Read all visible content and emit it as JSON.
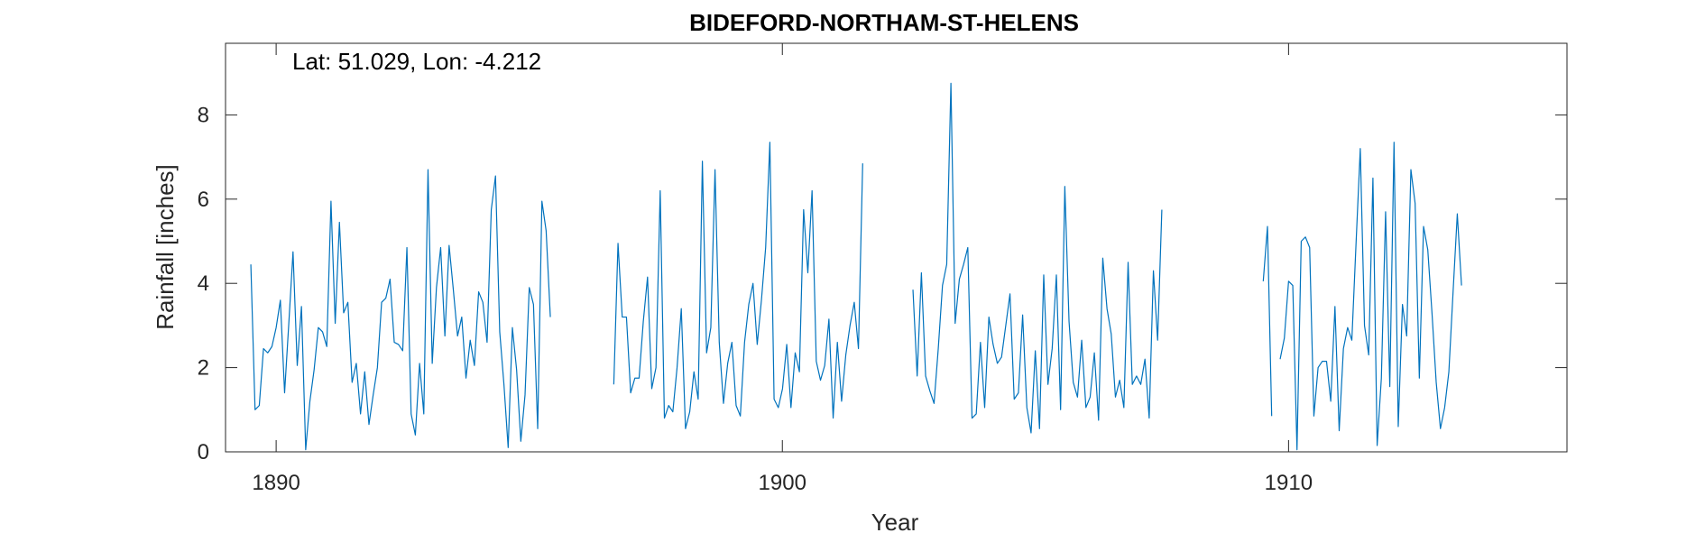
{
  "chart_data": {
    "type": "line",
    "title": "BIDEFORD-NORTHAM-ST-HELENS",
    "annotation": "Lat: 51.029, Lon: -4.212",
    "xlabel": "Year",
    "ylabel": "Rainfall [inches]",
    "xlim": [
      1889.0,
      1915.5
    ],
    "ylim": [
      0,
      9.7
    ],
    "xticks": [
      1890,
      1900,
      1910
    ],
    "yticks": [
      0,
      2,
      4,
      6,
      8
    ],
    "grid": false,
    "line_color": "#0072BD",
    "series": [
      {
        "start_year": 1889.5,
        "values": [
          4.45,
          1.0,
          1.1,
          2.45,
          2.35,
          2.5,
          2.95,
          3.6,
          1.4,
          3.05,
          4.75,
          2.05,
          3.45,
          0.05,
          1.2,
          1.95,
          2.95,
          2.85,
          2.5,
          5.95,
          3.05,
          5.45,
          3.3,
          3.55,
          1.65,
          2.1,
          0.9,
          1.9,
          0.65,
          1.35,
          2.0,
          3.55,
          3.65,
          4.1,
          2.6,
          2.55,
          2.4,
          4.85,
          0.9,
          0.4,
          2.1,
          0.9,
          6.7,
          2.1,
          3.9,
          4.85,
          2.75,
          4.9,
          3.85,
          2.75,
          3.2,
          1.75,
          2.65,
          2.05,
          3.8,
          3.55,
          2.6,
          5.75,
          6.55,
          2.85,
          1.6,
          0.1,
          2.95,
          1.95,
          0.25,
          1.35,
          3.9,
          3.5,
          0.55,
          5.95,
          5.25,
          3.2
        ]
      },
      {
        "start_year": 1896.67,
        "values": [
          1.6,
          4.95,
          3.2,
          3.2,
          1.4,
          1.75,
          1.75,
          3.1,
          4.15,
          1.5,
          2.0,
          6.2,
          0.8,
          1.1,
          0.95,
          2.0,
          3.4,
          0.55,
          0.95,
          1.9,
          1.25,
          6.9,
          2.35,
          2.95,
          6.7,
          2.6,
          1.15,
          2.1,
          2.6,
          1.1,
          0.85,
          2.6,
          3.5,
          4.0,
          2.55,
          3.6,
          4.85,
          7.35,
          1.25,
          1.05,
          1.5,
          2.55,
          1.05,
          2.35,
          1.9,
          5.75,
          4.25,
          6.2,
          2.15,
          1.7,
          2.05,
          3.15,
          0.8,
          2.6,
          1.2,
          2.3,
          3.0,
          3.55,
          2.45,
          6.85
        ]
      },
      {
        "start_year": 1902.58,
        "values": [
          3.85,
          1.8,
          4.25,
          1.8,
          1.45,
          1.15,
          2.45,
          3.95,
          4.45,
          8.75,
          3.05,
          4.1,
          4.45,
          4.85,
          0.8,
          0.9,
          2.6,
          1.05,
          3.2,
          2.55,
          2.1,
          2.25,
          3.0,
          3.75,
          1.25,
          1.4,
          3.25,
          1.05,
          0.45,
          2.4,
          0.55,
          4.2,
          1.6,
          2.45,
          4.2,
          1.0,
          6.3,
          3.1,
          1.65,
          1.3,
          2.65,
          1.05,
          1.3,
          2.35,
          0.75,
          4.6,
          3.4,
          2.8,
          1.3,
          1.7,
          1.05,
          4.5,
          1.6,
          1.8,
          1.6,
          2.2,
          0.8,
          4.3,
          2.65,
          5.75
        ]
      },
      {
        "start_year": 1909.5,
        "values": [
          4.05,
          5.35,
          0.85,
          null,
          2.2,
          2.7,
          4.05,
          3.95,
          0.05,
          5.0,
          5.1,
          4.85,
          0.85,
          2.0,
          2.15,
          2.15,
          1.2,
          3.45,
          0.5,
          2.45,
          2.95,
          2.65,
          4.95,
          7.2,
          3.0,
          2.3,
          6.5,
          0.15,
          1.75,
          5.7,
          1.55,
          7.35,
          0.6,
          3.5,
          2.75,
          6.7,
          5.9,
          1.75,
          5.35,
          4.8,
          3.3,
          1.65,
          0.55,
          1.05,
          1.9,
          3.8,
          5.65,
          3.95
        ]
      }
    ]
  }
}
